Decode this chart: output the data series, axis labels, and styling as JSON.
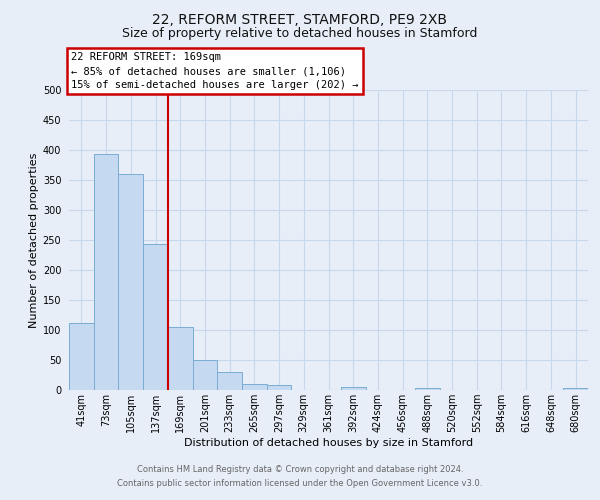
{
  "title_line1": "22, REFORM STREET, STAMFORD, PE9 2XB",
  "title_line2": "Size of property relative to detached houses in Stamford",
  "xlabel": "Distribution of detached houses by size in Stamford",
  "ylabel": "Number of detached properties",
  "bar_labels": [
    "41sqm",
    "73sqm",
    "105sqm",
    "137sqm",
    "169sqm",
    "201sqm",
    "233sqm",
    "265sqm",
    "297sqm",
    "329sqm",
    "361sqm",
    "392sqm",
    "424sqm",
    "456sqm",
    "488sqm",
    "520sqm",
    "552sqm",
    "584sqm",
    "616sqm",
    "648sqm",
    "680sqm"
  ],
  "bar_values": [
    111,
    393,
    360,
    244,
    105,
    50,
    30,
    10,
    8,
    0,
    0,
    5,
    0,
    0,
    3,
    0,
    0,
    0,
    0,
    0,
    3
  ],
  "bar_color": "#c5d9f0",
  "bar_edge_color": "#7aadd4",
  "vline_x_idx": 4,
  "vline_color": "#cc0000",
  "annotation_line1": "22 REFORM STREET: 169sqm",
  "annotation_line2": "← 85% of detached houses are smaller (1,106)",
  "annotation_line3": "15% of semi-detached houses are larger (202) →",
  "annotation_box_facecolor": "#ffffff",
  "annotation_box_edgecolor": "#cc0000",
  "ylim": [
    0,
    500
  ],
  "yticks": [
    0,
    50,
    100,
    150,
    200,
    250,
    300,
    350,
    400,
    450,
    500
  ],
  "grid_color": "#c8d8ec",
  "footer_line1": "Contains HM Land Registry data © Crown copyright and database right 2024.",
  "footer_line2": "Contains public sector information licensed under the Open Government Licence v3.0.",
  "bg_color": "#e8eef8",
  "title1_fontsize": 10,
  "title2_fontsize": 9,
  "ylabel_fontsize": 8,
  "xlabel_fontsize": 8,
  "tick_fontsize": 7,
  "footer_fontsize": 6
}
